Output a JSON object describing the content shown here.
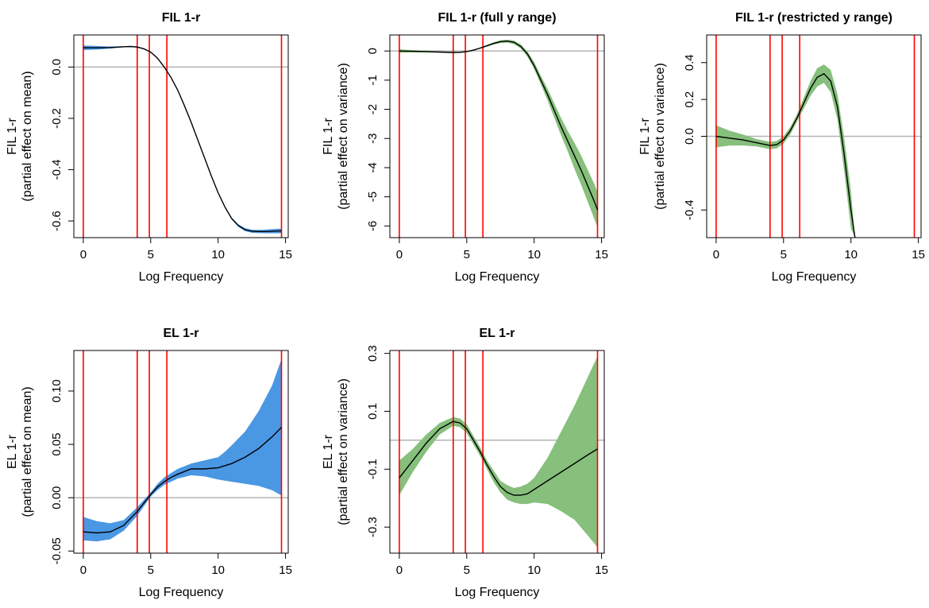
{
  "colors": {
    "mean_band": "#4a97e4",
    "var_band": "#86c07c",
    "estimate_line": "#000000",
    "knot_line": "#ff0000",
    "zero_line": "#b3b3b3"
  },
  "chart_data": [
    {
      "type": "line",
      "title": "FIL 1-r",
      "xlabel": "Log Frequency",
      "ylabel": "FIL 1-r",
      "ylabel2": "(partial effect on mean)",
      "xlim": [
        -0.7,
        15.2
      ],
      "ylim": [
        -0.665,
        0.125
      ],
      "xticks": [
        0,
        5,
        10,
        15
      ],
      "yticks": [
        0.0,
        -0.2,
        -0.4,
        -0.6
      ],
      "ytick_labels": [
        "0.0",
        "-0.2",
        "-0.4",
        "-0.6"
      ],
      "knots": [
        0,
        4.0,
        4.9,
        6.2,
        14.7
      ],
      "hline": 0,
      "band": "mean",
      "series": [
        {
          "name": "estimate",
          "x": [
            0,
            1,
            2,
            3,
            3.5,
            4,
            4.5,
            5,
            5.5,
            6,
            6.5,
            7,
            7.5,
            8,
            8.5,
            9,
            9.5,
            10,
            10.5,
            11,
            11.5,
            12,
            12.5,
            13,
            13.5,
            14,
            14.5,
            14.7
          ],
          "y": [
            0.075,
            0.075,
            0.076,
            0.079,
            0.08,
            0.078,
            0.071,
            0.058,
            0.035,
            0.0,
            -0.04,
            -0.09,
            -0.15,
            -0.215,
            -0.285,
            -0.355,
            -0.425,
            -0.49,
            -0.545,
            -0.59,
            -0.618,
            -0.634,
            -0.64,
            -0.641,
            -0.641,
            -0.64,
            -0.639,
            -0.639
          ]
        },
        {
          "name": "ci_lower",
          "x": [
            0,
            1,
            2,
            3,
            3.5,
            4,
            4.5,
            5,
            5.5,
            6,
            6.5,
            7,
            7.5,
            8,
            8.5,
            9,
            9.5,
            10,
            10.5,
            11,
            11.5,
            12,
            12.5,
            13,
            13.5,
            14,
            14.5,
            14.7
          ],
          "y": [
            0.066,
            0.068,
            0.072,
            0.077,
            0.078,
            0.076,
            0.069,
            0.056,
            0.033,
            -0.002,
            -0.042,
            -0.092,
            -0.152,
            -0.217,
            -0.287,
            -0.357,
            -0.427,
            -0.493,
            -0.548,
            -0.594,
            -0.623,
            -0.64,
            -0.646,
            -0.647,
            -0.648,
            -0.648,
            -0.648,
            -0.648
          ]
        },
        {
          "name": "ci_upper",
          "x": [
            0,
            1,
            2,
            3,
            3.5,
            4,
            4.5,
            5,
            5.5,
            6,
            6.5,
            7,
            7.5,
            8,
            8.5,
            9,
            9.5,
            10,
            10.5,
            11,
            11.5,
            12,
            12.5,
            13,
            13.5,
            14,
            14.5,
            14.7
          ],
          "y": [
            0.084,
            0.082,
            0.08,
            0.081,
            0.082,
            0.08,
            0.073,
            0.06,
            0.037,
            0.002,
            -0.038,
            -0.088,
            -0.148,
            -0.213,
            -0.283,
            -0.353,
            -0.423,
            -0.487,
            -0.542,
            -0.586,
            -0.613,
            -0.628,
            -0.634,
            -0.635,
            -0.634,
            -0.632,
            -0.63,
            -0.63
          ]
        }
      ]
    },
    {
      "type": "line",
      "title": "FIL 1-r (full y range)",
      "xlabel": "Log Frequency",
      "ylabel": "FIL 1-r",
      "ylabel2": "(partial effect on variance)",
      "xlim": [
        -0.7,
        15.2
      ],
      "ylim": [
        -6.4,
        0.55
      ],
      "xticks": [
        0,
        5,
        10,
        15
      ],
      "yticks": [
        0,
        -1,
        -2,
        -3,
        -4,
        -5,
        -6
      ],
      "ytick_labels": [
        "0",
        "-1",
        "-2",
        "-3",
        "-4",
        "-5",
        "-6"
      ],
      "knots": [
        0,
        4.0,
        4.9,
        6.2,
        14.7
      ],
      "hline": 0,
      "band": "var",
      "series": [
        {
          "name": "estimate",
          "x": [
            0,
            1,
            2,
            3,
            4,
            4.5,
            5,
            5.5,
            6,
            6.5,
            7,
            7.5,
            8,
            8.5,
            9,
            9.5,
            10,
            10.5,
            11,
            11.5,
            12,
            12.5,
            13,
            13.5,
            14,
            14.5,
            14.7
          ],
          "y": [
            0,
            -0.01,
            -0.02,
            -0.035,
            -0.05,
            -0.045,
            -0.02,
            0.03,
            0.1,
            0.18,
            0.26,
            0.32,
            0.34,
            0.3,
            0.16,
            -0.1,
            -0.5,
            -1.0,
            -1.5,
            -2.05,
            -2.6,
            -3.1,
            -3.6,
            -4.1,
            -4.65,
            -5.2,
            -5.45
          ]
        },
        {
          "name": "ci_lower",
          "x": [
            0,
            1,
            2,
            3,
            4,
            4.5,
            5,
            5.5,
            6,
            6.5,
            7,
            7.5,
            8,
            8.5,
            9,
            9.5,
            10,
            10.5,
            11,
            11.5,
            12,
            12.5,
            13,
            13.5,
            14,
            14.5,
            14.7
          ],
          "y": [
            -0.06,
            -0.05,
            -0.05,
            -0.055,
            -0.07,
            -0.065,
            -0.04,
            0.01,
            0.08,
            0.15,
            0.22,
            0.27,
            0.29,
            0.24,
            0.09,
            -0.19,
            -0.62,
            -1.15,
            -1.7,
            -2.3,
            -2.9,
            -3.45,
            -4.05,
            -4.6,
            -5.2,
            -5.8,
            -6.05
          ]
        },
        {
          "name": "ci_upper",
          "x": [
            0,
            1,
            2,
            3,
            4,
            4.5,
            5,
            5.5,
            6,
            6.5,
            7,
            7.5,
            8,
            8.5,
            9,
            9.5,
            10,
            10.5,
            11,
            11.5,
            12,
            12.5,
            13,
            13.5,
            14,
            14.5,
            14.7
          ],
          "y": [
            0.06,
            0.03,
            0.01,
            -0.015,
            -0.03,
            -0.025,
            0.0,
            0.05,
            0.12,
            0.21,
            0.3,
            0.37,
            0.39,
            0.36,
            0.23,
            -0.01,
            -0.38,
            -0.85,
            -1.3,
            -1.8,
            -2.3,
            -2.75,
            -3.15,
            -3.6,
            -4.1,
            -4.6,
            -4.85
          ]
        }
      ]
    },
    {
      "type": "line",
      "title": "FIL 1-r (restricted y range)",
      "xlabel": "Log Frequency",
      "ylabel": "FIL 1-r",
      "ylabel2": "(partial effect on variance)",
      "xlim": [
        -0.7,
        15.2
      ],
      "ylim": [
        -0.55,
        0.55
      ],
      "xticks": [
        0,
        5,
        10,
        15
      ],
      "yticks": [
        0.4,
        0.2,
        0.0,
        -0.4
      ],
      "ytick_labels": [
        "0.4",
        "0.2",
        "0.0",
        "-0.4"
      ],
      "knots": [
        0,
        4.0,
        4.9,
        6.2,
        14.7
      ],
      "hline": 0,
      "band": "var",
      "series": [
        {
          "name": "estimate",
          "x": [
            0,
            1,
            2,
            3,
            4,
            4.5,
            5,
            5.5,
            6,
            6.5,
            7,
            7.5,
            8,
            8.5,
            9,
            9.5,
            10,
            10.3
          ],
          "y": [
            0.0,
            -0.01,
            -0.02,
            -0.035,
            -0.05,
            -0.045,
            -0.02,
            0.03,
            0.1,
            0.18,
            0.26,
            0.32,
            0.34,
            0.3,
            0.16,
            -0.1,
            -0.4,
            -0.55
          ]
        },
        {
          "name": "ci_lower",
          "x": [
            0,
            1,
            2,
            3,
            4,
            4.5,
            5,
            5.5,
            6,
            6.5,
            7,
            7.5,
            8,
            8.5,
            9,
            9.5,
            10,
            10.3
          ],
          "y": [
            -0.06,
            -0.05,
            -0.05,
            -0.055,
            -0.07,
            -0.065,
            -0.04,
            0.01,
            0.08,
            0.15,
            0.22,
            0.27,
            0.29,
            0.24,
            0.09,
            -0.19,
            -0.5,
            -0.55
          ]
        },
        {
          "name": "ci_upper",
          "x": [
            0,
            1,
            2,
            3,
            4,
            4.5,
            5,
            5.5,
            6,
            6.5,
            7,
            7.5,
            8,
            8.5,
            9,
            9.5,
            10,
            10.3
          ],
          "y": [
            0.06,
            0.03,
            0.01,
            -0.015,
            -0.03,
            -0.025,
            0.0,
            0.05,
            0.12,
            0.21,
            0.3,
            0.37,
            0.39,
            0.36,
            0.23,
            -0.01,
            -0.3,
            -0.55
          ]
        }
      ]
    },
    {
      "type": "line",
      "title": "EL 1-r",
      "xlabel": "Log Frequency",
      "ylabel": "EL 1-r",
      "ylabel2": "(partial effect on mean)",
      "xlim": [
        -0.7,
        15.2
      ],
      "ylim": [
        -0.052,
        0.138
      ],
      "xticks": [
        0,
        5,
        10,
        15
      ],
      "yticks": [
        0.1,
        0.05,
        0.0,
        -0.05
      ],
      "ytick_labels": [
        "0.10",
        "0.05",
        "0.00",
        "-0.05"
      ],
      "knots": [
        0,
        4.0,
        4.9,
        6.2,
        14.7
      ],
      "hline": 0,
      "band": "mean",
      "series": [
        {
          "name": "estimate",
          "x": [
            0,
            1,
            2,
            3,
            4,
            4.5,
            5,
            5.5,
            6,
            6.5,
            7,
            8,
            9,
            10,
            10.5,
            11,
            12,
            13,
            14,
            14.7
          ],
          "y": [
            -0.032,
            -0.033,
            -0.032,
            -0.026,
            -0.013,
            -0.005,
            0.003,
            0.01,
            0.015,
            0.019,
            0.022,
            0.027,
            0.027,
            0.028,
            0.03,
            0.032,
            0.038,
            0.046,
            0.057,
            0.066
          ]
        },
        {
          "name": "ci_lower",
          "x": [
            0,
            1,
            2,
            3,
            4,
            4.5,
            5,
            5.5,
            6,
            6.5,
            7,
            8,
            9,
            10,
            10.5,
            11,
            12,
            13,
            14,
            14.7
          ],
          "y": [
            -0.04,
            -0.041,
            -0.039,
            -0.031,
            -0.017,
            -0.008,
            0.001,
            0.007,
            0.012,
            0.015,
            0.018,
            0.021,
            0.02,
            0.017,
            0.016,
            0.015,
            0.013,
            0.011,
            0.007,
            0.002
          ]
        },
        {
          "name": "ci_upper",
          "x": [
            0,
            1,
            2,
            3,
            4,
            4.5,
            5,
            5.5,
            6,
            6.5,
            7,
            8,
            9,
            10,
            10.5,
            11,
            12,
            13,
            14,
            14.7
          ],
          "y": [
            -0.018,
            -0.022,
            -0.024,
            -0.021,
            -0.009,
            -0.002,
            0.005,
            0.013,
            0.019,
            0.023,
            0.027,
            0.032,
            0.035,
            0.038,
            0.043,
            0.049,
            0.062,
            0.081,
            0.105,
            0.13
          ]
        }
      ]
    },
    {
      "type": "line",
      "title": "EL 1-r",
      "xlabel": "Log Frequency",
      "ylabel": "EL 1-r",
      "ylabel2": "(partial effect on variance)",
      "xlim": [
        -0.7,
        15.2
      ],
      "ylim": [
        -0.39,
        0.31
      ],
      "xticks": [
        0,
        5,
        10,
        15
      ],
      "yticks": [
        0.3,
        0.1,
        -0.1,
        -0.3
      ],
      "ytick_labels": [
        "0.3",
        "0.1",
        "-0.1",
        "-0.3"
      ],
      "knots": [
        0,
        4.0,
        4.9,
        6.2,
        14.7
      ],
      "hline": 0,
      "band": "var",
      "series": [
        {
          "name": "estimate",
          "x": [
            0,
            1,
            2,
            3,
            4,
            4.5,
            5,
            5.5,
            6,
            6.5,
            7,
            7.5,
            8,
            8.5,
            9,
            9.5,
            10,
            11,
            12,
            13,
            14,
            14.7
          ],
          "y": [
            -0.13,
            -0.07,
            -0.01,
            0.04,
            0.065,
            0.06,
            0.04,
            0.0,
            -0.04,
            -0.085,
            -0.125,
            -0.16,
            -0.18,
            -0.19,
            -0.19,
            -0.185,
            -0.17,
            -0.14,
            -0.11,
            -0.08,
            -0.05,
            -0.03
          ]
        },
        {
          "name": "ci_lower",
          "x": [
            0,
            1,
            2,
            3,
            4,
            4.5,
            5,
            5.5,
            6,
            6.5,
            7,
            7.5,
            8,
            8.5,
            9,
            9.5,
            10,
            11,
            12,
            13,
            14,
            14.7
          ],
          "y": [
            -0.19,
            -0.11,
            -0.04,
            0.02,
            0.05,
            0.045,
            0.025,
            -0.015,
            -0.055,
            -0.1,
            -0.145,
            -0.18,
            -0.205,
            -0.215,
            -0.22,
            -0.22,
            -0.215,
            -0.22,
            -0.245,
            -0.275,
            -0.33,
            -0.37
          ]
        },
        {
          "name": "ci_upper",
          "x": [
            0,
            1,
            2,
            3,
            4,
            4.5,
            5,
            5.5,
            6,
            6.5,
            7,
            7.5,
            8,
            8.5,
            9,
            9.5,
            10,
            11,
            12,
            13,
            14,
            14.7
          ],
          "y": [
            -0.07,
            -0.03,
            0.02,
            0.06,
            0.08,
            0.075,
            0.055,
            0.015,
            -0.025,
            -0.07,
            -0.105,
            -0.14,
            -0.155,
            -0.165,
            -0.16,
            -0.15,
            -0.13,
            -0.06,
            0.03,
            0.12,
            0.22,
            0.29
          ]
        }
      ]
    }
  ]
}
